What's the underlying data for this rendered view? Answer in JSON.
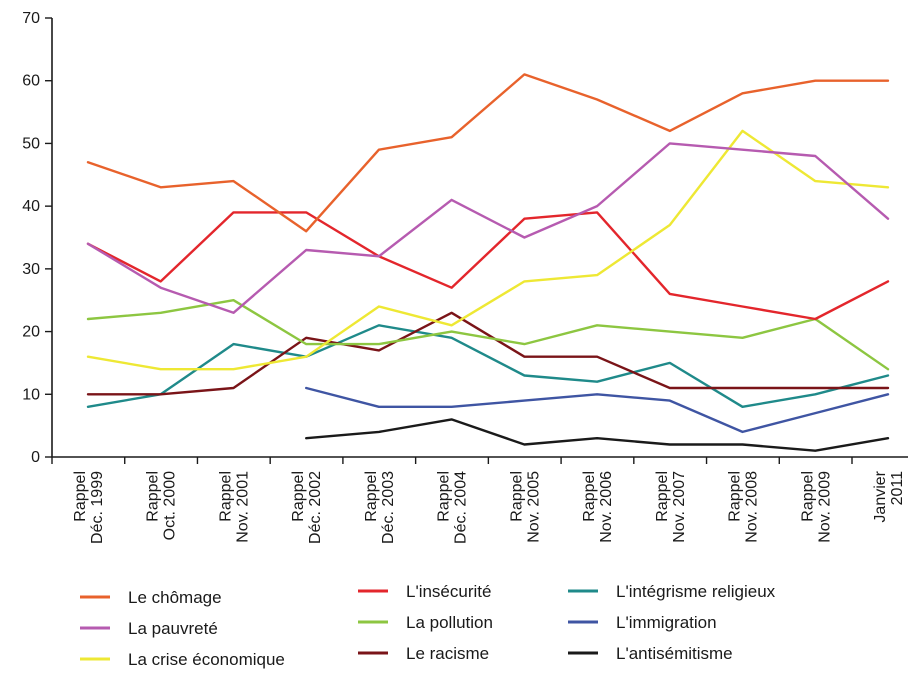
{
  "chart_data": {
    "type": "line",
    "title": "",
    "xlabel": "",
    "ylabel": "",
    "ylim": [
      0,
      70
    ],
    "yticks": [
      0,
      10,
      20,
      30,
      40,
      50,
      60,
      70
    ],
    "grid": false,
    "legend_position": "bottom",
    "categories": [
      [
        "Rappel",
        "Déc. 1999"
      ],
      [
        "Rappel",
        "Oct. 2000"
      ],
      [
        "Rappel",
        "Nov. 2001"
      ],
      [
        "Rappel",
        "Déc. 2002"
      ],
      [
        "Rappel",
        "Déc. 2003"
      ],
      [
        "Rappel",
        "Déc. 2004"
      ],
      [
        "Rappel",
        "Nov. 2005"
      ],
      [
        "Rappel",
        "Nov. 2006"
      ],
      [
        "Rappel",
        "Nov. 2007"
      ],
      [
        "Rappel",
        "Nov. 2008"
      ],
      [
        "Rappel",
        "Nov. 2009"
      ],
      [
        "Janvier",
        "2011"
      ]
    ],
    "series": [
      {
        "name": "Le chômage",
        "color": "#e8622c",
        "values": [
          47,
          43,
          44,
          36,
          49,
          51,
          61,
          57,
          52,
          58,
          60,
          60
        ]
      },
      {
        "name": "La pauvreté",
        "color": "#b65bb0",
        "values": [
          34,
          27,
          23,
          33,
          32,
          41,
          35,
          40,
          50,
          49,
          48,
          38
        ]
      },
      {
        "name": "La crise économique",
        "color": "#eee834",
        "values": [
          16,
          14,
          14,
          16,
          24,
          21,
          28,
          29,
          37,
          52,
          44,
          43
        ]
      },
      {
        "name": "L'insécurité",
        "color": "#e3262c",
        "values": [
          34,
          28,
          39,
          39,
          32,
          27,
          38,
          39,
          26,
          24,
          22,
          28
        ]
      },
      {
        "name": "La pollution",
        "color": "#8dc641",
        "values": [
          22,
          23,
          25,
          18,
          18,
          20,
          18,
          21,
          20,
          19,
          22,
          14
        ]
      },
      {
        "name": "Le racisme",
        "color": "#7a1418",
        "values": [
          10,
          10,
          11,
          19,
          17,
          23,
          16,
          16,
          11,
          11,
          11,
          11
        ]
      },
      {
        "name": "L'intégrisme religieux",
        "color": "#1f8a8a",
        "values": [
          8,
          10,
          18,
          16,
          21,
          19,
          13,
          12,
          15,
          8,
          10,
          13
        ]
      },
      {
        "name": "L'immigration",
        "color": "#3f55a3",
        "values": [
          null,
          null,
          null,
          11,
          8,
          8,
          9,
          10,
          9,
          4,
          7,
          10
        ]
      },
      {
        "name": "L'antisémitisme",
        "color": "#1a1a1a",
        "values": [
          null,
          null,
          null,
          3,
          4,
          6,
          2,
          3,
          2,
          2,
          1,
          3
        ]
      }
    ],
    "legend_columns": [
      [
        "Le chômage",
        "La pauvreté",
        "La crise économique"
      ],
      [
        "L'insécurité",
        "La pollution",
        "Le racisme"
      ],
      [
        "L'intégrisme religieux",
        "L'immigration",
        "L'antisémitisme"
      ]
    ]
  }
}
